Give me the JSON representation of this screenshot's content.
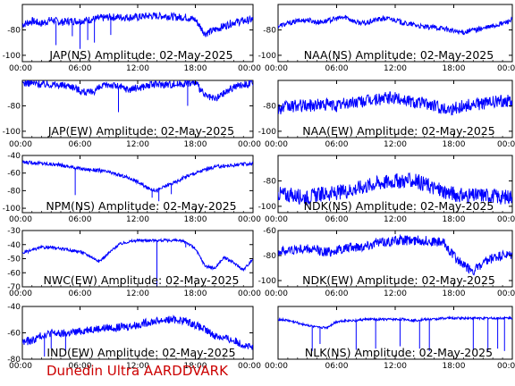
{
  "footer": {
    "text": "Dunedin Ultra AARDDVARK",
    "color": "#cc0000"
  },
  "colors": {
    "trace": "#0000ff",
    "frame": "#000000",
    "background": "#ffffff"
  },
  "x_ticks": [
    "00:00",
    "06:00",
    "12:00",
    "18:00",
    "00:00"
  ],
  "chart_data": [
    {
      "type": "line",
      "title": "JAP(NS) Amplitude: 02-May-2025",
      "column": "left",
      "row": 0,
      "ylim": [
        -105,
        -60
      ],
      "yticks": [
        -100,
        -80
      ],
      "x": [
        0,
        1,
        2,
        3,
        4,
        5,
        6,
        7,
        8,
        9,
        10,
        11,
        12,
        13,
        14,
        15,
        16,
        17,
        18,
        19,
        20,
        21,
        22,
        23,
        24
      ],
      "y": [
        -76,
        -73,
        -75,
        -72,
        -74,
        -73,
        -73,
        -72,
        -71,
        -70,
        -70,
        -70,
        -70,
        -69,
        -69,
        -69,
        -70,
        -70,
        -72,
        -83,
        -80,
        -77,
        -74,
        -73,
        -72
      ],
      "band": 3,
      "spikes": [
        [
          3.5,
          -92
        ],
        [
          5.2,
          -85
        ],
        [
          6.0,
          -95
        ],
        [
          6.8,
          -88
        ],
        [
          7.5,
          -90
        ],
        [
          9.2,
          -84
        ]
      ]
    },
    {
      "type": "line",
      "title": "NAA(NS) Amplitude: 02-May-2025",
      "column": "right",
      "row": 0,
      "ylim": [
        -105,
        -60
      ],
      "yticks": [
        -100,
        -80
      ],
      "x": [
        0,
        1,
        2,
        3,
        4,
        5,
        6,
        7,
        8,
        9,
        10,
        11,
        12,
        13,
        14,
        15,
        16,
        17,
        18,
        19,
        20,
        21,
        22,
        23,
        24
      ],
      "y": [
        -77,
        -75,
        -73,
        -72,
        -74,
        -73,
        -71,
        -70,
        -74,
        -75,
        -72,
        -71,
        -72,
        -75,
        -76,
        -78,
        -78,
        -79,
        -81,
        -82,
        -80,
        -79,
        -77,
        -75,
        -72
      ],
      "band": 2,
      "spikes": []
    },
    {
      "type": "line",
      "title": "JAP(EW) Amplitude: 02-May-2025",
      "column": "left",
      "row": 1,
      "ylim": [
        -105,
        -60
      ],
      "yticks": [
        -100,
        -80
      ],
      "x": [
        0,
        1,
        2,
        3,
        4,
        5,
        6,
        7,
        8,
        9,
        10,
        11,
        12,
        13,
        14,
        15,
        16,
        17,
        18,
        19,
        20,
        21,
        22,
        23,
        24
      ],
      "y": [
        -62,
        -62,
        -63,
        -63,
        -64,
        -64,
        -68,
        -70,
        -66,
        -63,
        -65,
        -67,
        -66,
        -64,
        -63,
        -63,
        -63,
        -62,
        -62,
        -72,
        -75,
        -70,
        -65,
        -63,
        -62
      ],
      "band": 3,
      "spikes": [
        [
          10.0,
          -85
        ],
        [
          17.2,
          -80
        ]
      ]
    },
    {
      "type": "line",
      "title": "NAA(EW) Amplitude: 02-May-2025",
      "column": "right",
      "row": 1,
      "ylim": [
        -105,
        -60
      ],
      "yticks": [
        -100,
        -80
      ],
      "x": [
        0,
        1,
        2,
        3,
        4,
        5,
        6,
        7,
        8,
        9,
        10,
        11,
        12,
        13,
        14,
        15,
        16,
        17,
        18,
        19,
        20,
        21,
        22,
        23,
        24
      ],
      "y": [
        -82,
        -81,
        -80,
        -80,
        -79,
        -79,
        -80,
        -78,
        -77,
        -76,
        -75,
        -74,
        -74,
        -75,
        -77,
        -78,
        -80,
        -82,
        -82,
        -80,
        -79,
        -78,
        -77,
        -76,
        -76
      ],
      "band": 5,
      "spikes": []
    },
    {
      "type": "line",
      "title": "NPM(NS) Amplitude: 02-May-2025",
      "column": "left",
      "row": 2,
      "ylim": [
        -105,
        -40
      ],
      "yticks": [
        -100,
        -80,
        -60,
        -40
      ],
      "x": [
        0,
        1,
        2,
        3,
        4,
        5,
        6,
        7,
        8,
        9,
        10,
        11,
        12,
        13,
        14,
        15,
        16,
        17,
        18,
        19,
        20,
        21,
        22,
        23,
        24
      ],
      "y": [
        -48,
        -48,
        -49,
        -50,
        -51,
        -53,
        -55,
        -56,
        -57,
        -59,
        -62,
        -65,
        -70,
        -77,
        -80,
        -74,
        -70,
        -64,
        -60,
        -56,
        -53,
        -52,
        -51,
        -50,
        -49
      ],
      "band": 2,
      "spikes": [
        [
          5.5,
          -85
        ],
        [
          13.5,
          -88
        ],
        [
          14.2,
          -92
        ],
        [
          15.5,
          -84
        ]
      ]
    },
    {
      "type": "line",
      "title": "NDK(NS) Amplitude: 02-May-2025",
      "column": "right",
      "row": 2,
      "ylim": [
        -105,
        -60
      ],
      "yticks": [
        -100,
        -80
      ],
      "x": [
        0,
        1,
        2,
        3,
        4,
        5,
        6,
        7,
        8,
        9,
        10,
        11,
        12,
        13,
        14,
        15,
        16,
        17,
        18,
        19,
        20,
        21,
        22,
        23,
        24
      ],
      "y": [
        -90,
        -91,
        -92,
        -93,
        -91,
        -90,
        -90,
        -88,
        -86,
        -84,
        -82,
        -81,
        -80,
        -80,
        -80,
        -82,
        -86,
        -88,
        -90,
        -92,
        -92,
        -91,
        -92,
        -93,
        -92
      ],
      "band": 6,
      "spikes": []
    },
    {
      "type": "line",
      "title": "NWC(EW) Amplitude: 02-May-2025",
      "column": "left",
      "row": 3,
      "ylim": [
        -70,
        -30
      ],
      "yticks": [
        -70,
        -60,
        -50,
        -40,
        -30
      ],
      "x": [
        0,
        1,
        2,
        3,
        4,
        5,
        6,
        7,
        8,
        9,
        10,
        11,
        12,
        13,
        14,
        15,
        16,
        17,
        18,
        19,
        20,
        21,
        22,
        23,
        24
      ],
      "y": [
        -46,
        -44,
        -42,
        -42,
        -43,
        -44,
        -45,
        -48,
        -52,
        -46,
        -40,
        -38,
        -37,
        -37,
        -37,
        -37,
        -37,
        -38,
        -43,
        -55,
        -57,
        -49,
        -53,
        -58,
        -50
      ],
      "band": 1,
      "spikes": [
        [
          14.0,
          -70
        ],
        [
          17.0,
          -42
        ]
      ]
    },
    {
      "type": "line",
      "title": "NDK(EW) Amplitude: 02-May-2025",
      "column": "right",
      "row": 3,
      "ylim": [
        -105,
        -60
      ],
      "yticks": [
        -100,
        -80,
        -60
      ],
      "x": [
        0,
        1,
        2,
        3,
        4,
        5,
        6,
        7,
        8,
        9,
        10,
        11,
        12,
        13,
        14,
        15,
        16,
        17,
        18,
        19,
        20,
        21,
        22,
        23,
        24
      ],
      "y": [
        -77,
        -76,
        -75,
        -75,
        -76,
        -77,
        -76,
        -74,
        -73,
        -72,
        -70,
        -69,
        -68,
        -68,
        -68,
        -68,
        -69,
        -70,
        -80,
        -88,
        -92,
        -87,
        -82,
        -80,
        -80
      ],
      "band": 4,
      "spikes": []
    },
    {
      "type": "line",
      "title": "IND(EW) Amplitude: 02-May-2025",
      "column": "left",
      "row": 4,
      "ylim": [
        -80,
        -40
      ],
      "yticks": [
        -80,
        -60,
        -40
      ],
      "x": [
        0,
        1,
        2,
        3,
        4,
        5,
        6,
        7,
        8,
        9,
        10,
        11,
        12,
        13,
        14,
        15,
        16,
        17,
        18,
        19,
        20,
        21,
        22,
        23,
        24
      ],
      "y": [
        -67,
        -66,
        -62,
        -60,
        -61,
        -60,
        -59,
        -57,
        -57,
        -56,
        -56,
        -55,
        -54,
        -52,
        -51,
        -50,
        -50,
        -51,
        -54,
        -58,
        -62,
        -64,
        -66,
        -69,
        -72
      ],
      "band": 3,
      "spikes": [
        [
          2.3,
          -78
        ],
        [
          3.0,
          -72
        ],
        [
          4.5,
          -74
        ]
      ]
    },
    {
      "type": "line",
      "title": "NLK(NS) Amplitude: 02-May-2025",
      "column": "right",
      "row": 4,
      "ylim": [
        -105,
        -60
      ],
      "yticks": [],
      "x": [
        0,
        1,
        2,
        3,
        4,
        5,
        6,
        7,
        8,
        9,
        10,
        11,
        12,
        13,
        14,
        15,
        16,
        17,
        18,
        19,
        20,
        21,
        22,
        23,
        24
      ],
      "y": [
        -71,
        -72,
        -74,
        -76,
        -78,
        -78,
        -73,
        -72,
        -72,
        -71,
        -71,
        -71,
        -71,
        -71,
        -72,
        -71,
        -71,
        -70,
        -70,
        -70,
        -70,
        -70,
        -70,
        -70,
        -70
      ],
      "band": 1,
      "spikes": [
        [
          3.5,
          -98
        ],
        [
          4.3,
          -92
        ],
        [
          8.0,
          -97
        ],
        [
          10.0,
          -96
        ],
        [
          12.5,
          -94
        ],
        [
          14.5,
          -96
        ],
        [
          15.5,
          -98
        ],
        [
          20.0,
          -97
        ],
        [
          21.5,
          -98
        ],
        [
          22.5,
          -96
        ],
        [
          23.2,
          -98
        ]
      ]
    }
  ]
}
